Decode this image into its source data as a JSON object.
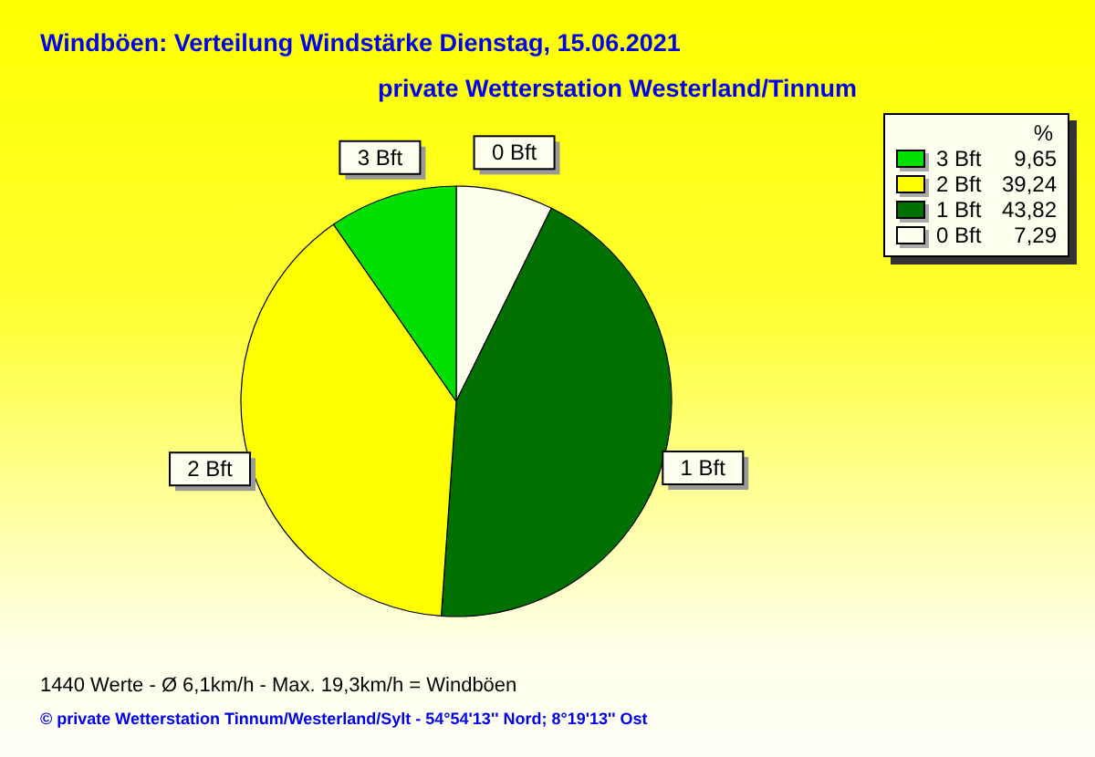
{
  "chart_data": {
    "type": "pie",
    "title": "Windböen: Verteilung Windstärke  Dienstag, 15.06.2021",
    "subtitle": "private Wetterstation Westerland/Tinnum",
    "categories": [
      "0 Bft",
      "1 Bft",
      "2 Bft",
      "3 Bft"
    ],
    "values": [
      7.29,
      43.82,
      39.24,
      9.65
    ],
    "value_labels": [
      "7,29",
      "43,82",
      "39,24",
      "9,65"
    ],
    "colors": [
      "#ffffee",
      "#007000",
      "#ffff00",
      "#00e000"
    ],
    "legend": "top right",
    "legend_title": "%",
    "annotations": [
      "1440 Werte   -   Ø 6,1km/h  -  Max. 19,3km/h = Windböen",
      "© private Wetterstation Tinnum/Westerland/Sylt  -  54°54'13'' Nord; 8°19'13'' Ost"
    ]
  }
}
